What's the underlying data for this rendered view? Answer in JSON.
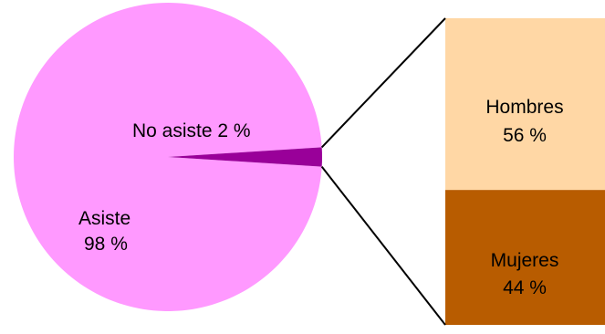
{
  "chart_data": [
    {
      "type": "pie",
      "categories": [
        "Asiste",
        "No asiste"
      ],
      "values": [
        98,
        2
      ],
      "unit": "%",
      "labels": [
        {
          "name": "Asiste",
          "value": "98 %"
        },
        {
          "name": "No asiste",
          "value": "2 %"
        }
      ],
      "colors": [
        "#ff99ff",
        "#990099"
      ]
    },
    {
      "type": "bar",
      "stacked": true,
      "categories": [
        "Hombres",
        "Mujeres"
      ],
      "values": [
        56,
        44
      ],
      "unit": "%",
      "labels": [
        {
          "name": "Hombres",
          "value": "56 %"
        },
        {
          "name": "Mujeres",
          "value": "44 %"
        }
      ],
      "colors": [
        "#ffd7a5",
        "#b85c00"
      ],
      "breakdown_of": "No asiste"
    }
  ]
}
